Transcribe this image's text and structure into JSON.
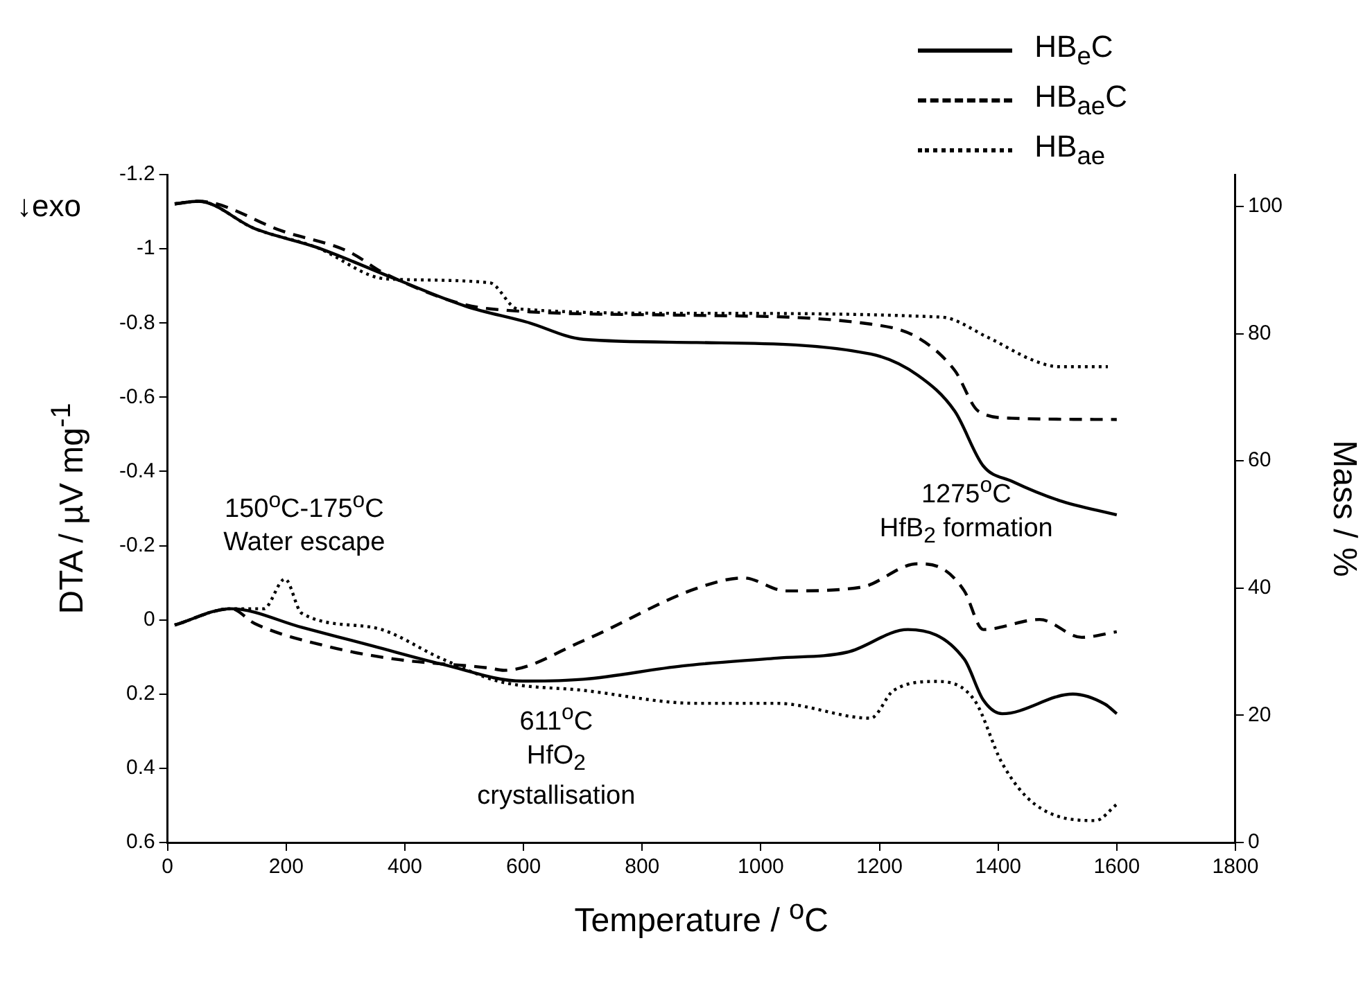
{
  "chart_data": {
    "type": "line",
    "xlabel": "Temperature / $^{o}$C",
    "ylabel": "DTA / µV mg$^{-1}$",
    "y2label": "Mass / %",
    "xlim": [
      0,
      1800
    ],
    "xticks": [
      0,
      200,
      400,
      600,
      800,
      1000,
      1200,
      1400,
      1600,
      1800
    ],
    "ylim": [
      0.6,
      -1.2
    ],
    "yticks": [
      -1.2,
      -1,
      -0.8,
      -0.6,
      -0.4,
      -0.2,
      0,
      0.2,
      0.4,
      0.6
    ],
    "y2lim": [
      0,
      105
    ],
    "y2ticks": [
      0,
      20,
      40,
      60,
      80,
      100
    ],
    "grid": false,
    "legend": "top right",
    "marker": "none",
    "annotations": [
      "↓exo",
      "150$^{o}$C-175$^{o}$C\nWater escape",
      "611$^{o}$C\nHfO$_{2}$\ncrystallisation",
      "1275$^{o}$C\nHfB$_{2}$ formation"
    ],
    "series": [
      {
        "name": "HB$_{e}$C",
        "color": "#000000",
        "line_style": "solid",
        "axis": "y",
        "x": [
          12,
          107,
          226,
          345,
          464,
          598,
          701,
          868,
          1027,
          1146,
          1248,
          1343,
          1375,
          1407,
          1526,
          1581,
          1600
        ],
        "values": [
          0.014,
          -0.03,
          0.02,
          0.07,
          0.12,
          0.165,
          0.16,
          0.124,
          0.103,
          0.087,
          0.026,
          0.106,
          0.216,
          0.253,
          0.2,
          0.228,
          0.253
        ]
      },
      {
        "name": "HB$_{ae}$C",
        "color": "#000000",
        "line_style": "dashed",
        "axis": "y",
        "x": [
          12,
          107,
          147,
          266,
          384,
          543,
          567,
          701,
          892,
          971,
          1042,
          1169,
          1264,
          1304,
          1343,
          1375,
          1470,
          1541,
          1600
        ],
        "values": [
          0.014,
          -0.03,
          0.01,
          0.07,
          0.106,
          0.13,
          0.136,
          0.056,
          -0.085,
          -0.113,
          -0.078,
          -0.088,
          -0.151,
          -0.14,
          -0.078,
          0.026,
          -0.001,
          0.047,
          0.032
        ]
      },
      {
        "name": "HB$_{ae}$",
        "color": "#000000",
        "line_style": "dotted",
        "axis": "y",
        "x": [
          12,
          107,
          162,
          198,
          226,
          345,
          464,
          559,
          701,
          892,
          1027,
          1185,
          1224,
          1296,
          1360,
          1407,
          1462,
          1564,
          1600
        ],
        "values": [
          0.014,
          -0.03,
          -0.03,
          -0.11,
          -0.018,
          0.02,
          0.106,
          0.166,
          0.19,
          0.225,
          0.225,
          0.265,
          0.19,
          0.166,
          0.216,
          0.387,
          0.497,
          0.541,
          0.497
        ]
      },
      {
        "color": "#000000",
        "line_style": "solid",
        "axis": "y2",
        "x": [
          12,
          52,
          147,
          250,
          384,
          503,
          606,
          701,
          892,
          1185,
          1264,
          1327,
          1375,
          1423,
          1502,
          1600
        ],
        "values": [
          100.4,
          100.8,
          96.5,
          93.6,
          88.6,
          84.3,
          81.8,
          79.1,
          78.6,
          76.8,
          73.5,
          67.8,
          59.2,
          56.8,
          53.8,
          51.5
        ]
      },
      {
        "color": "#000000",
        "line_style": "dashed",
        "axis": "y2",
        "x": [
          12,
          52,
          194,
          305,
          369,
          543,
          868,
          1185,
          1264,
          1327,
          1367,
          1423,
          1600
        ],
        "values": [
          100.4,
          100.8,
          96.1,
          92.9,
          89.3,
          83.9,
          82.9,
          81.5,
          79.4,
          74.2,
          67.8,
          66.7,
          66.5
        ]
      },
      {
        "color": "#000000",
        "line_style": "dotted",
        "axis": "y2",
        "x": [
          12,
          52,
          147,
          250,
          369,
          543,
          590,
          868,
          1304,
          1383,
          1462,
          1502,
          1585
        ],
        "values": [
          100.4,
          100.8,
          96.5,
          93.6,
          88.6,
          88.0,
          83.9,
          83.2,
          82.6,
          79.4,
          75.7,
          74.8,
          74.8
        ]
      }
    ]
  }
}
